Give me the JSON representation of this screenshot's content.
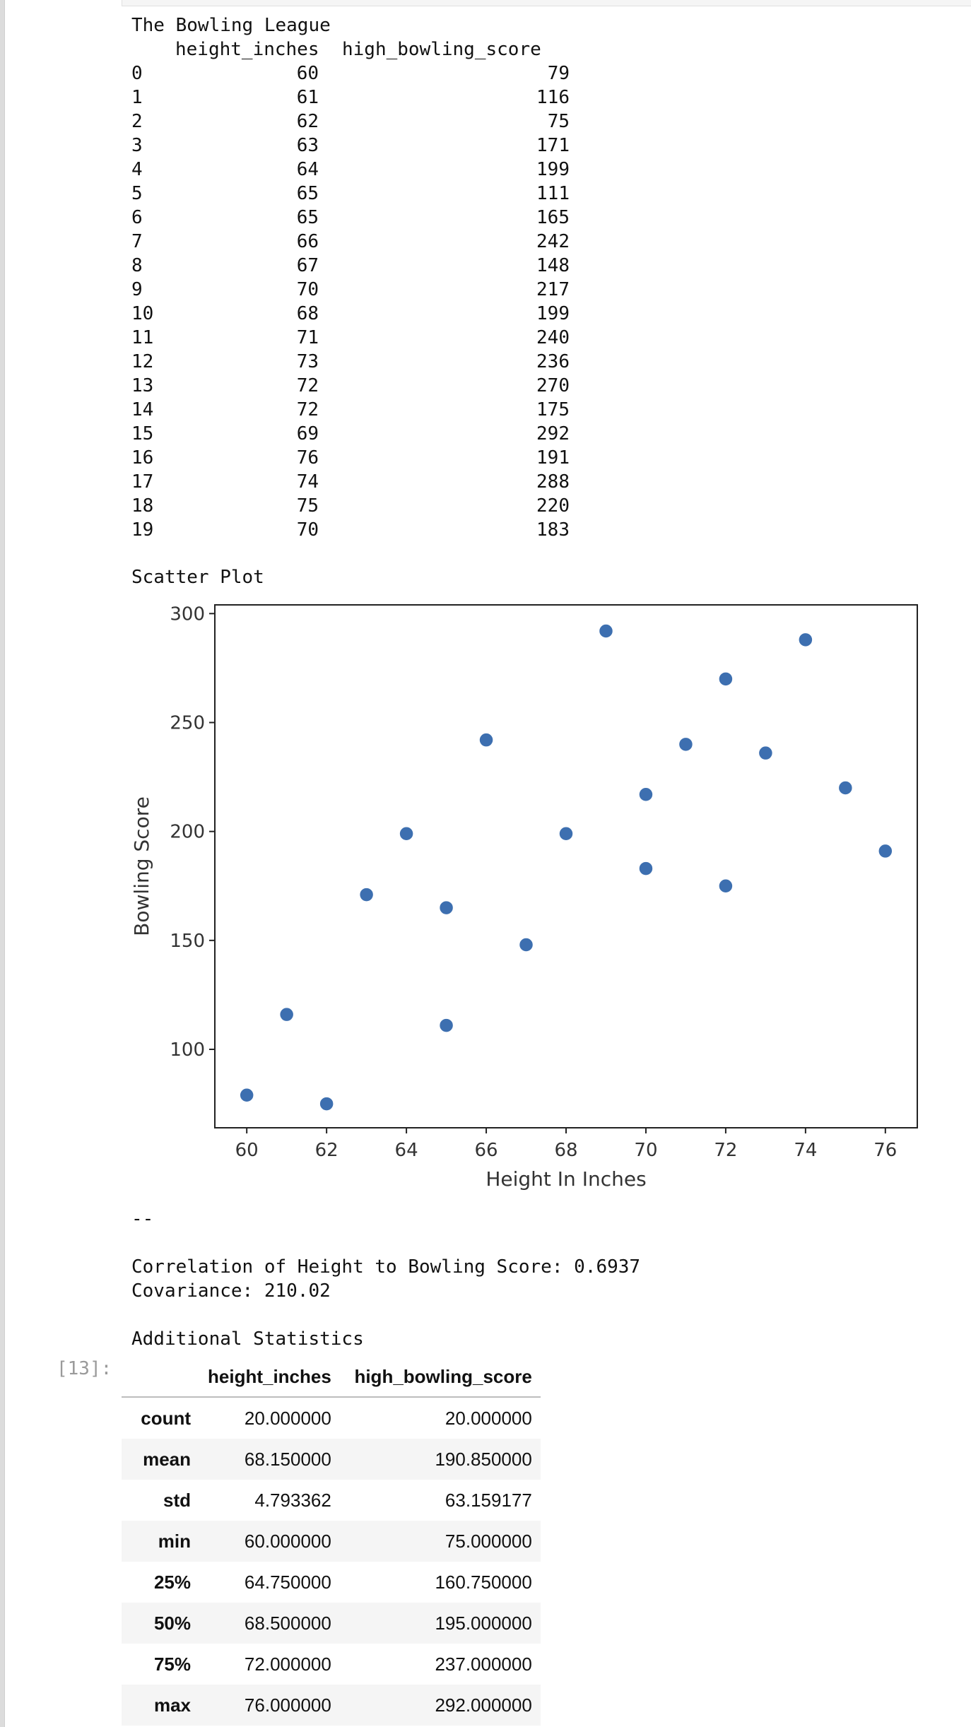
{
  "df_print": {
    "title": "The Bowling League",
    "columns": [
      "height_inches",
      "high_bowling_score"
    ],
    "rows": [
      {
        "idx": "0",
        "height": "60",
        "score": "79"
      },
      {
        "idx": "1",
        "height": "61",
        "score": "116"
      },
      {
        "idx": "2",
        "height": "62",
        "score": "75"
      },
      {
        "idx": "3",
        "height": "63",
        "score": "171"
      },
      {
        "idx": "4",
        "height": "64",
        "score": "199"
      },
      {
        "idx": "5",
        "height": "65",
        "score": "111"
      },
      {
        "idx": "6",
        "height": "65",
        "score": "165"
      },
      {
        "idx": "7",
        "height": "66",
        "score": "242"
      },
      {
        "idx": "8",
        "height": "67",
        "score": "148"
      },
      {
        "idx": "9",
        "height": "70",
        "score": "217"
      },
      {
        "idx": "10",
        "height": "68",
        "score": "199"
      },
      {
        "idx": "11",
        "height": "71",
        "score": "240"
      },
      {
        "idx": "12",
        "height": "73",
        "score": "236"
      },
      {
        "idx": "13",
        "height": "72",
        "score": "270"
      },
      {
        "idx": "14",
        "height": "72",
        "score": "175"
      },
      {
        "idx": "15",
        "height": "69",
        "score": "292"
      },
      {
        "idx": "16",
        "height": "76",
        "score": "191"
      },
      {
        "idx": "17",
        "height": "74",
        "score": "288"
      },
      {
        "idx": "18",
        "height": "75",
        "score": "220"
      },
      {
        "idx": "19",
        "height": "70",
        "score": "183"
      }
    ]
  },
  "scatter_heading": "Scatter Plot",
  "chart_data": {
    "type": "scatter",
    "title": "",
    "xlabel": "Height In Inches",
    "ylabel": "Bowling Score",
    "xlim": [
      59.2,
      76.8
    ],
    "ylim": [
      64,
      304
    ],
    "xticks": [
      60,
      62,
      64,
      66,
      68,
      70,
      72,
      74,
      76
    ],
    "yticks": [
      100,
      150,
      200,
      250,
      300
    ],
    "grid": false,
    "point_color": "#3d6fb0",
    "points": [
      {
        "x": 60,
        "y": 79
      },
      {
        "x": 61,
        "y": 116
      },
      {
        "x": 62,
        "y": 75
      },
      {
        "x": 63,
        "y": 171
      },
      {
        "x": 64,
        "y": 199
      },
      {
        "x": 65,
        "y": 111
      },
      {
        "x": 65,
        "y": 165
      },
      {
        "x": 66,
        "y": 242
      },
      {
        "x": 67,
        "y": 148
      },
      {
        "x": 70,
        "y": 217
      },
      {
        "x": 68,
        "y": 199
      },
      {
        "x": 71,
        "y": 240
      },
      {
        "x": 73,
        "y": 236
      },
      {
        "x": 72,
        "y": 270
      },
      {
        "x": 72,
        "y": 175
      },
      {
        "x": 69,
        "y": 292
      },
      {
        "x": 76,
        "y": 191
      },
      {
        "x": 74,
        "y": 288
      },
      {
        "x": 75,
        "y": 220
      },
      {
        "x": 70,
        "y": 183
      }
    ]
  },
  "separator": "--",
  "correlation_line": "Correlation of Height to Bowling Score: 0.6937",
  "covariance_line": "Covariance: 210.02",
  "additional_heading": "Additional Statistics",
  "cell_prompt": "[13]:",
  "stats": {
    "columns": [
      "height_inches",
      "high_bowling_score"
    ],
    "rows": [
      {
        "stat": "count",
        "height": "20.000000",
        "score": "20.000000"
      },
      {
        "stat": "mean",
        "height": "68.150000",
        "score": "190.850000"
      },
      {
        "stat": "std",
        "height": "4.793362",
        "score": "63.159177"
      },
      {
        "stat": "min",
        "height": "60.000000",
        "score": "75.000000"
      },
      {
        "stat": "25%",
        "height": "64.750000",
        "score": "160.750000"
      },
      {
        "stat": "50%",
        "height": "68.500000",
        "score": "195.000000"
      },
      {
        "stat": "75%",
        "height": "72.000000",
        "score": "237.000000"
      },
      {
        "stat": "max",
        "height": "76.000000",
        "score": "292.000000"
      }
    ]
  }
}
